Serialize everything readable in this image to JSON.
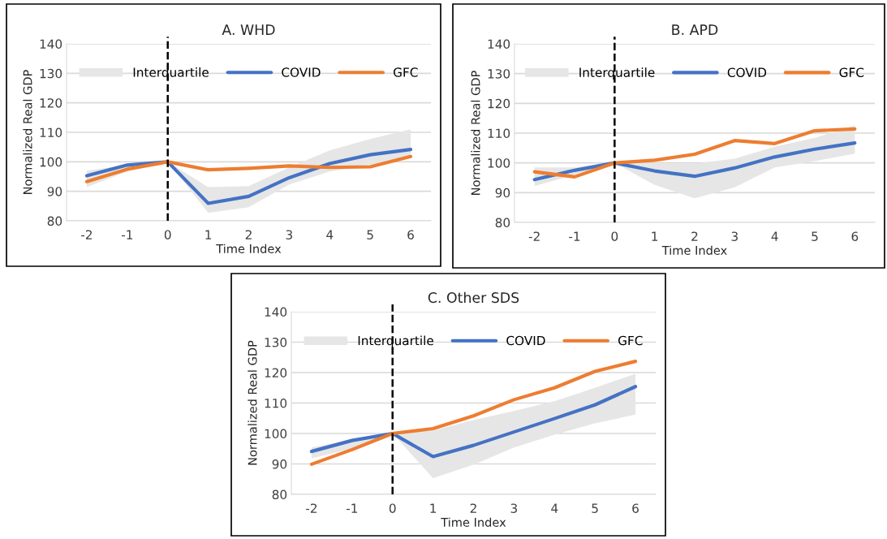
{
  "chart_data": [
    {
      "type": "line",
      "title": "A. WHD",
      "xlabel": "Time Index",
      "ylabel": "Normalized Real GDP",
      "categories": [
        "-2",
        "-1",
        "0",
        "1",
        "2",
        "3",
        "4",
        "5",
        "6"
      ],
      "ylim": [
        80,
        140
      ],
      "yticks": [
        80,
        90,
        100,
        110,
        120,
        130,
        140
      ],
      "grid": "y",
      "legend": "top",
      "line_style": "solid",
      "marker": "none",
      "series": [
        {
          "name": "Interquartile",
          "type": "area",
          "color": "#e6e6e6",
          "values": [
            null,
            null,
            null,
            null,
            null,
            null,
            null,
            null,
            null
          ],
          "lower": [
            91.4,
            96.7,
            100,
            82.7,
            84.6,
            92.3,
            96.7,
            99,
            101.5
          ],
          "upper": [
            97,
            99,
            100,
            91.4,
            91.8,
            98.1,
            103.9,
            107.7,
            111
          ]
        },
        {
          "name": "COVID",
          "color": "#4472c4",
          "values": [
            95.3,
            98.9,
            100,
            85.9,
            88.3,
            94.6,
            99.4,
            102.4,
            104.2
          ]
        },
        {
          "name": "GFC",
          "color": "#ed7d31",
          "values": [
            93.3,
            97.5,
            100,
            97.3,
            97.8,
            98.6,
            98.1,
            98.3,
            101.8
          ]
        }
      ],
      "ref_lines": [
        {
          "axis": "x",
          "value": "0",
          "color": "#000000",
          "line_style": "dashed"
        }
      ]
    },
    {
      "type": "line",
      "title": "B. APD",
      "xlabel": "Time Index",
      "ylabel": "Normalized Real GDP",
      "categories": [
        "-2",
        "-1",
        "0",
        "1",
        "2",
        "3",
        "4",
        "5",
        "6"
      ],
      "ylim": [
        80,
        140
      ],
      "yticks": [
        80,
        90,
        100,
        110,
        120,
        130,
        140
      ],
      "grid": "y",
      "legend": "top",
      "line_style": "solid",
      "marker": "none",
      "series": [
        {
          "name": "Interquartile",
          "type": "area",
          "color": "#e6e6e6",
          "values": [
            null,
            null,
            null,
            null,
            null,
            null,
            null,
            null,
            null
          ],
          "lower": [
            92.2,
            96,
            100,
            92.6,
            88.1,
            91.8,
            98.5,
            100.6,
            103.1
          ],
          "upper": [
            98.5,
            98.5,
            100,
            99.8,
            99.8,
            101.4,
            105.4,
            108.4,
            112.6
          ]
        },
        {
          "name": "COVID",
          "color": "#4472c4",
          "values": [
            94.4,
            97.5,
            100,
            97.3,
            95.5,
            98.3,
            102,
            104.6,
            106.7
          ]
        },
        {
          "name": "GFC",
          "color": "#ed7d31",
          "values": [
            97,
            95.3,
            100,
            100.9,
            102.9,
            107.5,
            106.5,
            110.8,
            111.4
          ]
        }
      ],
      "ref_lines": [
        {
          "axis": "x",
          "value": "0",
          "color": "#000000",
          "line_style": "dashed"
        }
      ]
    },
    {
      "type": "line",
      "title": "C. Other SDS",
      "xlabel": "Time Index",
      "ylabel": "Normalized Real GDP",
      "categories": [
        "-2",
        "-1",
        "0",
        "1",
        "2",
        "3",
        "4",
        "5",
        "6"
      ],
      "ylim": [
        80,
        140
      ],
      "yticks": [
        80,
        90,
        100,
        110,
        120,
        130,
        140
      ],
      "grid": "y",
      "legend": "top",
      "line_style": "solid",
      "marker": "none",
      "series": [
        {
          "name": "Interquartile",
          "type": "area",
          "color": "#e6e6e6",
          "values": [
            null,
            null,
            null,
            null,
            null,
            null,
            null,
            null,
            null
          ],
          "lower": [
            91.8,
            95,
            100,
            85.3,
            89.7,
            95.4,
            99.6,
            103.3,
            106.2
          ],
          "upper": [
            95.4,
            97.9,
            100,
            101,
            104.4,
            107.4,
            110.6,
            115,
            119.6
          ]
        },
        {
          "name": "COVID",
          "color": "#4472c4",
          "values": [
            94.1,
            97.7,
            100,
            92.4,
            96.1,
            100.5,
            104.9,
            109.4,
            115.4
          ]
        },
        {
          "name": "GFC",
          "color": "#ed7d31",
          "values": [
            89.9,
            94.7,
            100,
            101.6,
            105.8,
            111.1,
            115,
            120.4,
            123.7
          ]
        }
      ],
      "ref_lines": [
        {
          "axis": "x",
          "value": "0",
          "color": "#000000",
          "line_style": "dashed"
        }
      ]
    }
  ]
}
